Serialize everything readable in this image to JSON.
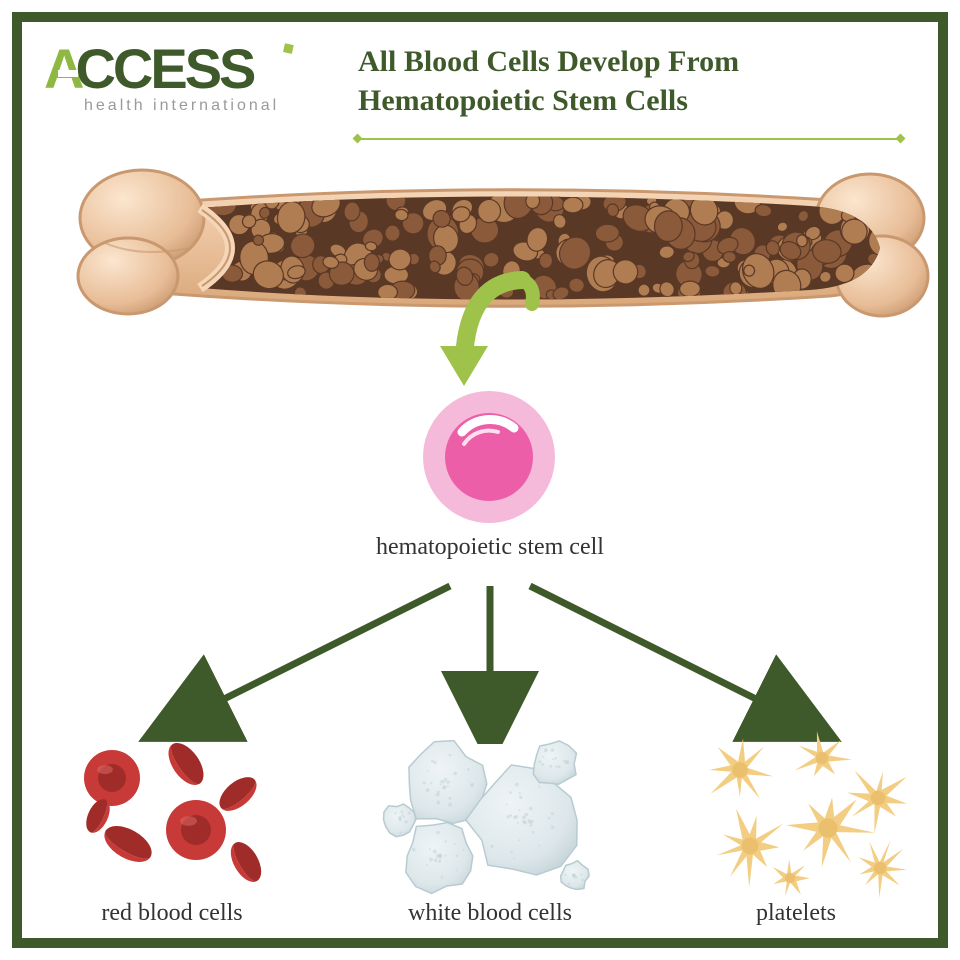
{
  "border_color": "#3f5a2a",
  "logo": {
    "text_main": "ACCESS",
    "text_sub": "health international",
    "color_main_dark": "#3f5a2a",
    "color_main_light": "#8fb843",
    "color_sub": "#9a9a9a",
    "fontsize_main": 56,
    "fontsize_sub": 16,
    "accent_color": "#9fc24a"
  },
  "title": {
    "text": "All Blood Cells Develop From Hematopoietic Stem Cells",
    "color": "#3f5a2a",
    "fontsize": 30
  },
  "bone": {
    "outline": "#c9986f",
    "fill_light": "#f5d6b8",
    "fill_mid": "#e8bd97",
    "marrow_dark": "#5a3826",
    "marrow_mid": "#8a5a3a",
    "marrow_light": "#b07d52",
    "shadow": "#d9a87a"
  },
  "arrow_bone_to_stem": {
    "color": "#9fc24a"
  },
  "stem_cell": {
    "outer": "#f5b9d9",
    "inner": "#ec5fa8",
    "highlight": "#ffffff",
    "label": "hematopoietic stem cell",
    "label_fontsize": 24,
    "label_color": "#333333"
  },
  "branch_arrows": {
    "color": "#3f5a2a",
    "stroke_width": 7
  },
  "cells": [
    {
      "key": "rbc",
      "label": "red blood cells",
      "fill": "#c83a37",
      "fill_dark": "#a02c29",
      "highlight": "#e06b68",
      "label_fontsize": 24,
      "label_color": "#333333"
    },
    {
      "key": "wbc",
      "label": "white blood cells",
      "fill": "#dde7ea",
      "fill_dark": "#c3d3d8",
      "outline": "#b8cbd1",
      "label_fontsize": 24,
      "label_color": "#333333"
    },
    {
      "key": "platelets",
      "label": "platelets",
      "fill": "#f2cd82",
      "fill_dark": "#e5b860",
      "label_fontsize": 24,
      "label_color": "#333333"
    }
  ]
}
